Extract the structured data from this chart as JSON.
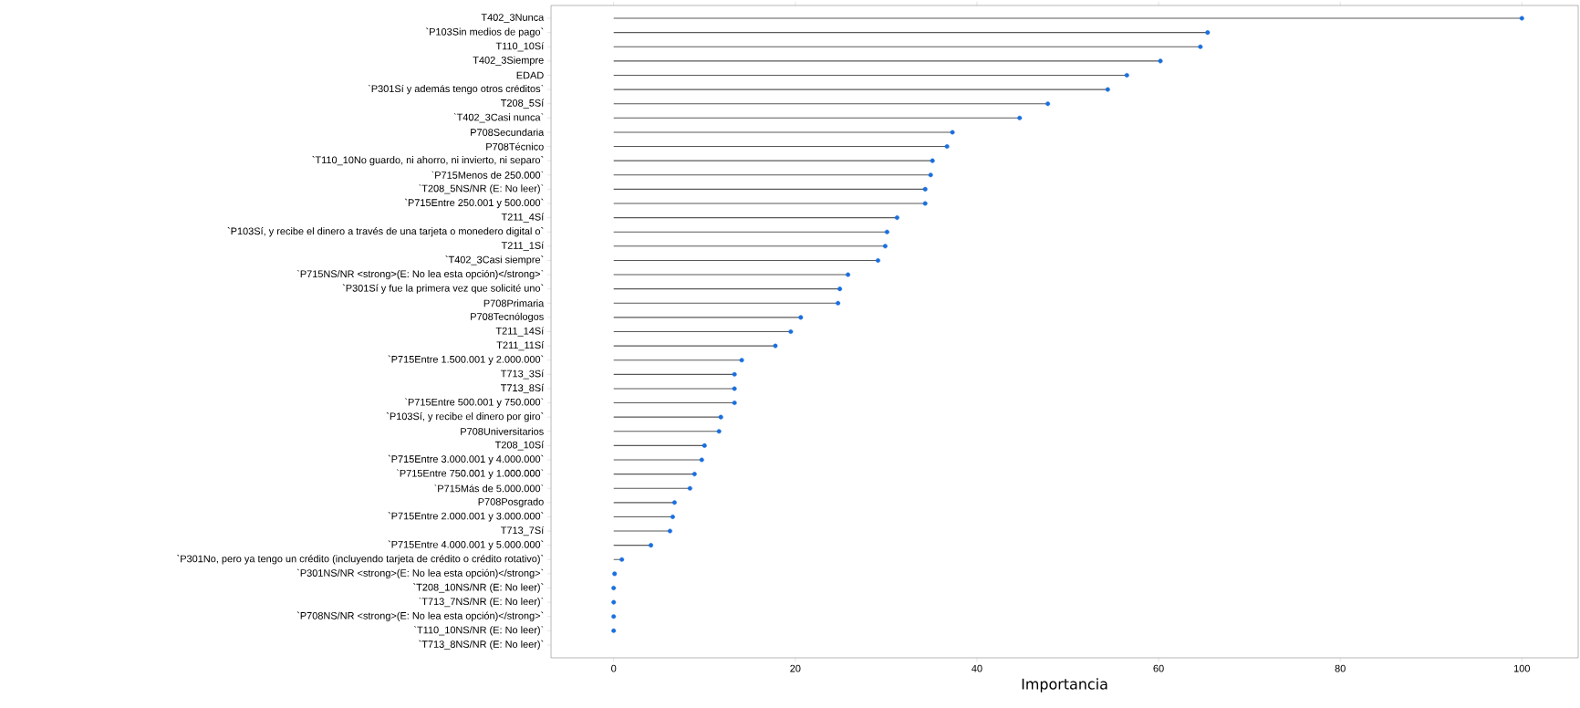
{
  "chart_data": {
    "type": "lollipop",
    "orientation": "horizontal",
    "xlabel": "Importancia",
    "color": "#1a6fdf",
    "categories": [
      "T402_3Nunca",
      "`P103Sin medios de pago`",
      "T110_10Sí",
      "T402_3Siempre",
      "EDAD",
      "`P301Sí y además tengo otros créditos`",
      "T208_5Sí",
      "`T402_3Casi nunca`",
      "P708Secundaria",
      "P708Técnico",
      "`T110_10No guardo, ni ahorro, ni invierto, ni separo`",
      "`P715Menos de 250.000`",
      "`T208_5NS/NR (E: No leer)`",
      "`P715Entre 250.001 y 500.000`",
      "T211_4Sí",
      "`P103Sí, y recibe el dinero a través de una tarjeta o monedero digital o`",
      "T211_1Sí",
      "`T402_3Casi siempre`",
      "`P715NS/NR <strong>(E: No lea esta opción)</strong>`",
      "`P301Sí y fue la primera vez que solicité uno`",
      "P708Primaria",
      "P708Tecnólogos",
      "T211_14Sí",
      "T211_11Sí",
      "`P715Entre 1.500.001 y 2.000.000`",
      "T713_3Sí",
      "T713_8Sí",
      "`P715Entre 500.001 y 750.000`",
      "`P103Sí, y recibe el dinero por giro`",
      "P708Universitarios",
      "T208_10Sí",
      "`P715Entre 3.000.001 y 4.000.000`",
      "`P715Entre 750.001 y 1.000.000`",
      "`P715Más de 5.000.000`",
      "P708Posgrado",
      "`P715Entre 2.000.001 y 3.000.000`",
      "T713_7Sí",
      "`P715Entre 4.000.001 y 5.000.000`",
      "`P301No, pero ya tengo un crédito (incluyendo tarjeta de crédito o crédito rotativo)`",
      "`P301NS/NR <strong>(E: No lea esta opción)</strong>`",
      "`T208_10NS/NR (E: No leer)`",
      "`T713_7NS/NR (E: No leer)`",
      "`P708NS/NR <strong>(E: No lea esta opción)</strong>`",
      "`T110_10NS/NR (E: No leer)`",
      "`T713_8NS/NR (E: No leer)`"
    ],
    "values": [
      100,
      65.4,
      64.6,
      60.2,
      56.5,
      54.4,
      47.8,
      44.7,
      37.3,
      36.7,
      35.1,
      34.9,
      34.3,
      34.3,
      31.2,
      30.1,
      29.9,
      29.1,
      25.8,
      24.9,
      24.7,
      20.6,
      19.5,
      17.8,
      14.1,
      13.3,
      13.3,
      13.3,
      11.8,
      11.6,
      10.0,
      9.7,
      8.9,
      8.4,
      6.7,
      6.5,
      6.2,
      4.1,
      0.9,
      0.1,
      0,
      0,
      0,
      0,
      null
    ],
    "xlim": [
      -6.9,
      106.2
    ],
    "xticks": [
      0,
      20,
      40,
      60,
      80,
      100
    ]
  }
}
